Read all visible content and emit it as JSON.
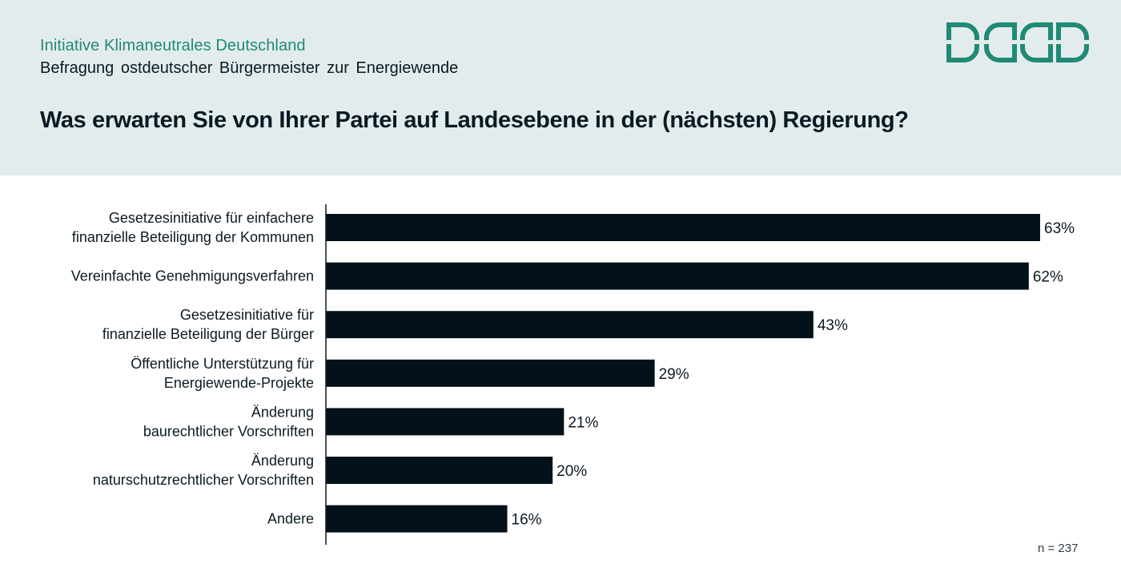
{
  "header": {
    "organization": "Initiative Klimaneutrales  Deutschland",
    "subtitle": "Befragung ostdeutscher Bürgermeister zur Energiewende",
    "question": "Was erwarten Sie von Ihrer Partei auf Landesebene in der (nächsten) Regierung?",
    "logo_icon": "ikd-logo-icon"
  },
  "colors": {
    "header_bg": "#e3eced",
    "accent": "#1f8a76",
    "bar": "#03121a",
    "text": "#0b1a22"
  },
  "footer": {
    "sample_size": "n = 237"
  },
  "chart_data": {
    "type": "bar",
    "orientation": "horizontal",
    "title": "Was erwarten Sie von Ihrer Partei auf Landesebene in der (nächsten) Regierung?",
    "xlabel": "",
    "ylabel": "",
    "xlim": [
      0,
      63
    ],
    "unit": "%",
    "grid": false,
    "legend": "none",
    "categories": [
      [
        "Gesetzesinitiative für einfachere",
        "finanzielle Beteiligung der Kommunen"
      ],
      [
        "Vereinfachte Genehmigungsverfahren"
      ],
      [
        "Gesetzesinitiative für",
        "finanzielle Beteiligung der Bürger"
      ],
      [
        "Öffentliche Unterstützung für",
        "Energiewende-Projekte"
      ],
      [
        "Änderung",
        "baurechtlicher Vorschriften"
      ],
      [
        "Änderung",
        "naturschutzrechtlicher Vorschriften"
      ],
      [
        "Andere"
      ]
    ],
    "values": [
      63,
      62,
      43,
      29,
      21,
      20,
      16
    ],
    "value_labels": [
      "63%",
      "62%",
      "43%",
      "29%",
      "21%",
      "20%",
      "16%"
    ]
  }
}
